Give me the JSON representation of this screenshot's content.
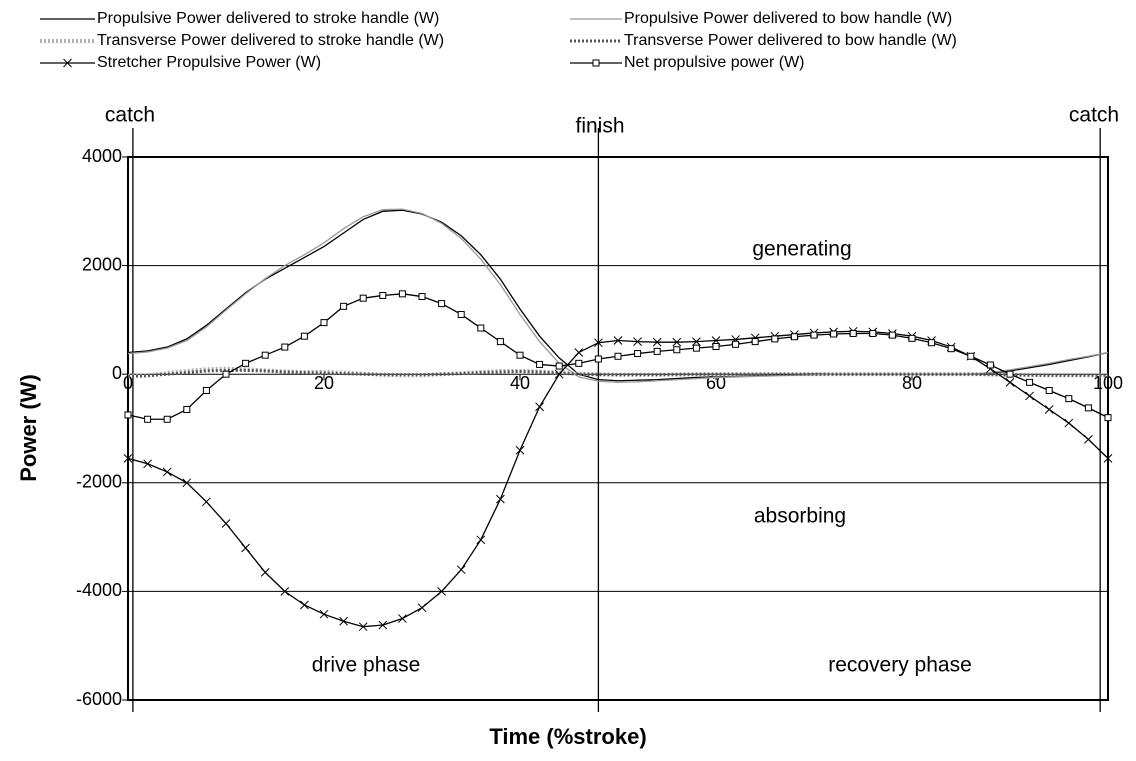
{
  "chart_data": {
    "type": "line",
    "xlabel": "Time (%stroke)",
    "ylabel": "Power (W)",
    "xlim": [
      0,
      100
    ],
    "ylim": [
      -6000,
      4000
    ],
    "xticks": [
      0,
      20,
      40,
      60,
      80,
      100
    ],
    "yticks": [
      -6000,
      -4000,
      -2000,
      0,
      2000,
      4000
    ],
    "grid": true,
    "x": [
      0,
      2,
      4,
      6,
      8,
      10,
      12,
      14,
      16,
      18,
      20,
      22,
      24,
      26,
      28,
      30,
      32,
      34,
      36,
      38,
      40,
      42,
      44,
      46,
      48,
      50,
      52,
      54,
      56,
      58,
      60,
      62,
      64,
      66,
      68,
      70,
      72,
      74,
      76,
      78,
      80,
      82,
      84,
      86,
      88,
      90,
      92,
      94,
      96,
      98,
      100
    ],
    "series": [
      {
        "name": "Propulsive Power delivered to stroke handle (W)",
        "color": "#000000",
        "width": 1.3,
        "dash": "none",
        "marker": "none",
        "values": [
          400,
          430,
          500,
          650,
          900,
          1200,
          1500,
          1750,
          1950,
          2150,
          2350,
          2600,
          2850,
          3000,
          3020,
          2950,
          2800,
          2550,
          2200,
          1750,
          1200,
          700,
          300,
          0,
          -100,
          -120,
          -110,
          -100,
          -80,
          -60,
          -50,
          -40,
          -30,
          -20,
          -10,
          0,
          0,
          0,
          0,
          0,
          0,
          0,
          0,
          0,
          20,
          60,
          120,
          180,
          250,
          320,
          400
        ]
      },
      {
        "name": "Propulsive Power delivered to bow handle (W)",
        "color": "#999999",
        "width": 1.3,
        "dash": "none",
        "marker": "none",
        "values": [
          380,
          410,
          480,
          620,
          870,
          1180,
          1480,
          1760,
          2000,
          2200,
          2420,
          2680,
          2900,
          3030,
          3040,
          2960,
          2780,
          2500,
          2120,
          1650,
          1100,
          600,
          200,
          -50,
          -130,
          -150,
          -140,
          -120,
          -100,
          -80,
          -60,
          -50,
          -40,
          -30,
          -20,
          -10,
          0,
          0,
          0,
          0,
          0,
          0,
          0,
          0,
          30,
          80,
          140,
          200,
          270,
          330,
          400
        ]
      },
      {
        "name": "Transverse Power delivered to stroke handle (W)",
        "color": "#b0b0b0",
        "width": 4,
        "dash": "2 2",
        "marker": "none",
        "values": [
          -30,
          -20,
          20,
          60,
          90,
          100,
          90,
          70,
          50,
          40,
          40,
          30,
          10,
          -10,
          -20,
          -20,
          0,
          20,
          40,
          60,
          60,
          50,
          30,
          10,
          0,
          -10,
          -10,
          -10,
          -10,
          0,
          0,
          0,
          0,
          0,
          0,
          0,
          0,
          0,
          0,
          0,
          0,
          0,
          0,
          0,
          0,
          -10,
          -10,
          -20,
          -20,
          -20,
          -20
        ]
      },
      {
        "name": "Transverse Power delivered to bow handle (W)",
        "color": "#555555",
        "width": 3,
        "dash": "2 2",
        "marker": "none",
        "values": [
          -40,
          -30,
          0,
          30,
          60,
          70,
          70,
          60,
          40,
          30,
          20,
          10,
          0,
          -10,
          -10,
          -10,
          0,
          10,
          30,
          40,
          50,
          40,
          20,
          0,
          -10,
          -10,
          -10,
          -10,
          0,
          0,
          0,
          0,
          0,
          0,
          0,
          0,
          0,
          0,
          0,
          0,
          0,
          0,
          0,
          0,
          -10,
          -10,
          -20,
          -20,
          -20,
          -20,
          -20
        ]
      },
      {
        "name": "Stretcher Propulsive Power (W)",
        "color": "#000000",
        "width": 1.3,
        "dash": "none",
        "marker": "x",
        "values": [
          -1550,
          -1650,
          -1800,
          -2000,
          -2350,
          -2750,
          -3200,
          -3650,
          -4000,
          -4250,
          -4420,
          -4550,
          -4650,
          -4620,
          -4500,
          -4300,
          -4000,
          -3600,
          -3050,
          -2300,
          -1400,
          -600,
          0,
          400,
          580,
          620,
          600,
          590,
          590,
          600,
          620,
          640,
          670,
          700,
          730,
          760,
          780,
          790,
          780,
          750,
          700,
          620,
          500,
          330,
          100,
          -150,
          -400,
          -650,
          -900,
          -1200,
          -1550
        ]
      },
      {
        "name": "Net propulsive power (W)",
        "color": "#000000",
        "width": 1.3,
        "dash": "none",
        "marker": "square",
        "values": [
          -750,
          -830,
          -830,
          -650,
          -300,
          0,
          200,
          350,
          500,
          700,
          950,
          1250,
          1400,
          1450,
          1480,
          1430,
          1300,
          1100,
          850,
          600,
          350,
          180,
          150,
          200,
          280,
          330,
          380,
          420,
          450,
          480,
          510,
          550,
          600,
          650,
          690,
          720,
          740,
          750,
          750,
          720,
          660,
          580,
          470,
          330,
          170,
          0,
          -150,
          -300,
          -450,
          -620,
          -800
        ]
      }
    ],
    "vlines": [
      0.5,
      48,
      99.2
    ],
    "annotations": [
      "catch",
      "finish",
      "catch",
      "generating",
      "absorbing",
      "drive phase",
      "recovery phase"
    ]
  }
}
